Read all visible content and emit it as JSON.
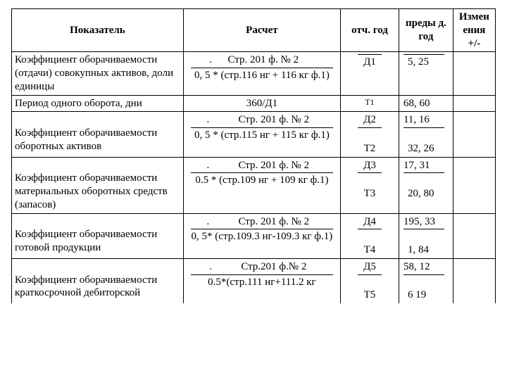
{
  "table": {
    "headers": {
      "col1": "Показатель",
      "col2": "Расчет",
      "col3": "отч. год",
      "col4": "преды д. год",
      "col5": "Измен ения +/-"
    },
    "rows": [
      {
        "label": "Коэффициент оборачиваемости (отдачи) совокупных активов, доли единицы",
        "calc_top": ".      Стр. 201 ф. № 2      ",
        "calc_bot": "0, 5 * (стр.116 нг + 116 кг ф.1)",
        "col3_top": "",
        "col3_bot": "Д1",
        "col4_top": "",
        "col4_bot": "5, 25",
        "col5": ""
      },
      {
        "label": "Период одного оборота, дни",
        "calc": "360/Д1",
        "col3": "T1",
        "col4": "68, 60",
        "col5": ""
      },
      {
        "label": "Коэффициент оборачиваемости оборотных активов",
        "calc_top": ".           Стр. 201 ф. № 2   ",
        "calc_bot": "0, 5 * (стр.115 нг + 115 кг ф.1)",
        "col3_top": "Д2",
        "col3_bot": "Т2",
        "col4_top": "11, 16",
        "col4_bot": "32, 26",
        "col5": ""
      },
      {
        "label": "Коэффициент оборачиваемости материальных оборотных средств (запасов)",
        "calc_top": ".           Стр. 201 ф. № 2   ",
        "calc_bot": "0.5 * (стр.109 нг + 109 кг ф.1)",
        "col3_top": "Д3",
        "col3_bot": "Т3",
        "col4_top": "17, 31",
        "col4_bot": "20, 80",
        "col5": ""
      },
      {
        "label": "Коэффициент оборачиваемости готовой продукции",
        "calc_top": ".           Стр. 201 ф. № 2   ",
        "calc_bot": "0, 5* (стр.109.3 нг-109.3 кг ф.1)",
        "col3_top": "Д4",
        "col3_bot": "Т4",
        "col4_top": "195, 33",
        "col4_bot": "1, 84",
        "col5": ""
      },
      {
        "label": "Коэффициент оборачиваемости краткосрочной дебиторской",
        "calc_top": ".           Стр.201 ф.№ 2   ",
        "calc_bot": "0.5*(стр.111 нг+111.2 кг",
        "col3_top": "Д5",
        "col3_bot": "Т5",
        "col4_top": "58, 12",
        "col4_bot": "6 19",
        "col5": ""
      }
    ]
  }
}
